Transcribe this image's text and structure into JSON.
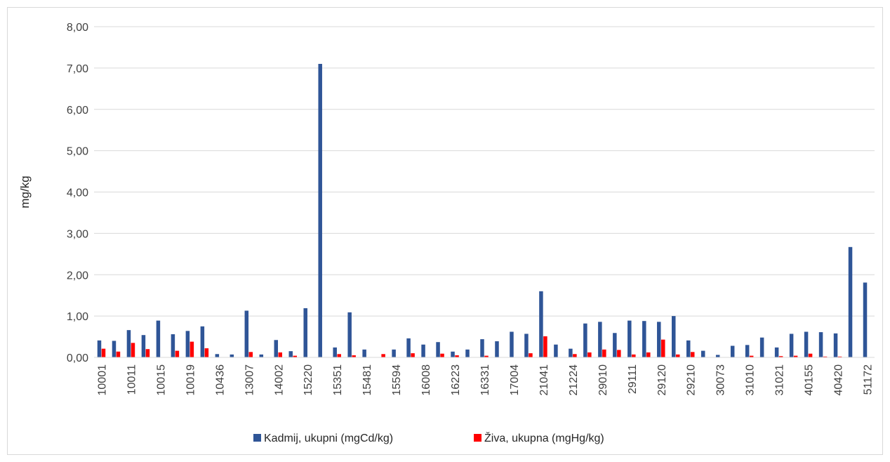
{
  "chart_data": {
    "type": "bar",
    "title": "",
    "xlabel": "",
    "ylabel": "mg/kg",
    "ylim": [
      0,
      8
    ],
    "yticks": [
      "0,00",
      "1,00",
      "2,00",
      "3,00",
      "4,00",
      "5,00",
      "6,00",
      "7,00",
      "8,00"
    ],
    "grid": true,
    "legend_position": "bottom",
    "x_tick_labels": [
      "10001",
      "10011",
      "10015",
      "10019",
      "10436",
      "13007",
      "14002",
      "15220",
      "15351",
      "15481",
      "15594",
      "16008",
      "16223",
      "16331",
      "17004",
      "21041",
      "21224",
      "29010",
      "29111",
      "29120",
      "29210",
      "30073",
      "31010",
      "31021",
      "40155",
      "40420",
      "51172"
    ],
    "categories": [
      "10001",
      "",
      "10011",
      "",
      "10015",
      "",
      "10019",
      "",
      "10436",
      "",
      "13007",
      "",
      "14002",
      "",
      "15220",
      "",
      "15351",
      "",
      "15481",
      "",
      "15594",
      "",
      "16008",
      "",
      "16223",
      "",
      "16331",
      "",
      "17004",
      "",
      "21041",
      "",
      "21224",
      "",
      "29010",
      "",
      "29111",
      "",
      "29120",
      "",
      "29210",
      "",
      "30073",
      "",
      "31010",
      "",
      "31021",
      "",
      "40155",
      "",
      "40420",
      "",
      "51172"
    ],
    "series": [
      {
        "name": "Kadmij, ukupni (mgCd/kg)",
        "color": "#2f5597",
        "values": [
          0.41,
          0.4,
          0.66,
          0.54,
          0.89,
          0.56,
          0.64,
          0.75,
          0.08,
          0.07,
          1.13,
          0.07,
          0.42,
          0.15,
          1.19,
          7.1,
          0.24,
          1.09,
          0.19,
          0.0,
          0.19,
          0.46,
          0.31,
          0.37,
          0.14,
          0.19,
          0.44,
          0.39,
          0.62,
          0.57,
          1.6,
          0.31,
          0.21,
          0.82,
          0.86,
          0.59,
          0.89,
          0.88,
          0.86,
          1.0,
          0.41,
          0.16,
          0.06,
          0.28,
          0.3,
          0.48,
          0.24,
          0.57,
          0.62,
          0.61,
          0.58,
          2.67,
          1.81
        ]
      },
      {
        "name": "Živa, ukupna (mgHg/kg)",
        "color": "#ff0000",
        "values": [
          0.21,
          0.14,
          0.35,
          0.2,
          0.0,
          0.16,
          0.38,
          0.22,
          0.0,
          0.0,
          0.13,
          0.0,
          0.12,
          0.04,
          0.0,
          0.0,
          0.08,
          0.05,
          0.0,
          0.08,
          0.0,
          0.1,
          0.0,
          0.09,
          0.05,
          0.0,
          0.04,
          0.0,
          0.0,
          0.1,
          0.51,
          0.0,
          0.08,
          0.12,
          0.19,
          0.18,
          0.07,
          0.12,
          0.43,
          0.07,
          0.13,
          0.0,
          0.0,
          0.0,
          0.04,
          0.0,
          0.03,
          0.04,
          0.09,
          0.02,
          0.02,
          0.0,
          0.0
        ]
      }
    ]
  }
}
